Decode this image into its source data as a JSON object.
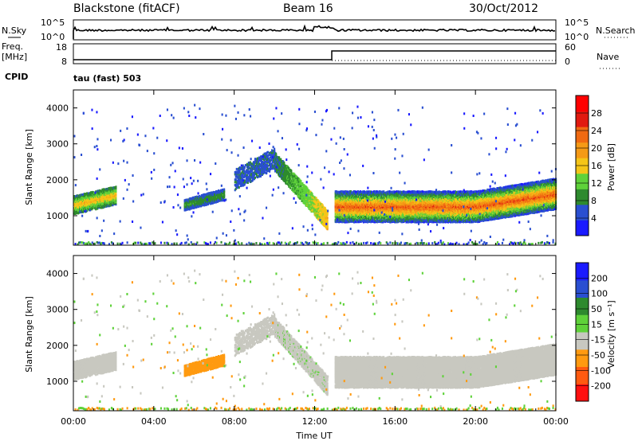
{
  "header": {
    "station": "Blackstone (fitACF)",
    "beam": "Beam 16",
    "date": "30/Oct/2012"
  },
  "sky_panel": {
    "left_label": "N.Sky",
    "right_label": "N.Search",
    "left_ticks": [
      "10^5",
      "10^0"
    ],
    "right_ticks": [
      "10^5",
      "10^0"
    ]
  },
  "freq_panel": {
    "left_label_1": "Freq.",
    "left_label_2": "[MHz]",
    "right_label": "Nave",
    "left_ticks": [
      "18",
      "8"
    ],
    "right_ticks": [
      "60",
      "0"
    ]
  },
  "cpid": {
    "label": "CPID",
    "text": "tau (fast) 503"
  },
  "colors": {
    "power": [
      "#1a1aff",
      "#2a4fd1",
      "#2e8a2e",
      "#5fd23a",
      "#f5c518",
      "#f59a16",
      "#f06a12",
      "#e11a10",
      "#ff0000"
    ],
    "velocity": [
      "#ff1010",
      "#ff5a10",
      "#ff9a10",
      "#c8c8c0",
      "#5fd23a",
      "#2e8a2e",
      "#2a4fd1",
      "#1a1aff"
    ]
  },
  "chart_data": [
    {
      "type": "heatmap",
      "title": "Power",
      "xlabel": "Time UT",
      "ylabel": "Slant Range [km]",
      "x_ticks": [
        "00:00",
        "04:00",
        "08:00",
        "12:00",
        "16:00",
        "20:00",
        "00:00"
      ],
      "y_ticks": [
        "1000",
        "2000",
        "3000",
        "4000"
      ],
      "colorbar_label": "Power [dB]",
      "colorbar_ticks": [
        "4",
        "8",
        "12",
        "16",
        "20",
        "24",
        "28"
      ],
      "xlim": [
        0,
        24
      ],
      "ylim": [
        180,
        4500
      ],
      "features": [
        {
          "name": "early-band",
          "t": [
            0,
            2.1
          ],
          "range_km": [
            1100,
            1650
          ],
          "level": 20
        },
        {
          "name": "morning-band",
          "t": [
            5.5,
            7.5
          ],
          "range_km": [
            1200,
            1600
          ],
          "level": 12
        },
        {
          "name": "noon-arc",
          "t": [
            8.0,
            12.6
          ],
          "range_km": [
            800,
            2700
          ],
          "level": 8
        },
        {
          "name": "afternoon-band",
          "t": [
            13.0,
            24.0
          ],
          "range_km": [
            800,
            1900
          ],
          "level": 24
        }
      ]
    },
    {
      "type": "heatmap",
      "title": "Velocity",
      "xlabel": "Time UT",
      "ylabel": "Slant Range [km]",
      "x_ticks": [
        "00:00",
        "04:00",
        "08:00",
        "12:00",
        "16:00",
        "20:00",
        "00:00"
      ],
      "y_ticks": [
        "1000",
        "2000",
        "3000",
        "4000"
      ],
      "colorbar_label": "Velocity [m s⁻¹]",
      "colorbar_ticks": [
        "200",
        "100",
        "50",
        "15",
        "-15",
        "-50",
        "-100",
        "-200"
      ],
      "xlim": [
        0,
        24
      ],
      "ylim": [
        180,
        4500
      ],
      "features": [
        {
          "name": "early-band",
          "t": [
            0,
            2.1
          ],
          "range_km": [
            1100,
            1650
          ],
          "velocity": 0
        },
        {
          "name": "morning-patch",
          "t": [
            5.5,
            7.5
          ],
          "range_km": [
            1200,
            1650
          ],
          "velocity": -50
        },
        {
          "name": "noon-arc",
          "t": [
            8.0,
            12.6
          ],
          "range_km": [
            800,
            2700
          ],
          "velocity": 0
        },
        {
          "name": "afternoon-band",
          "t": [
            13.0,
            24.0
          ],
          "range_km": [
            800,
            1900
          ],
          "velocity": 0
        }
      ]
    }
  ]
}
